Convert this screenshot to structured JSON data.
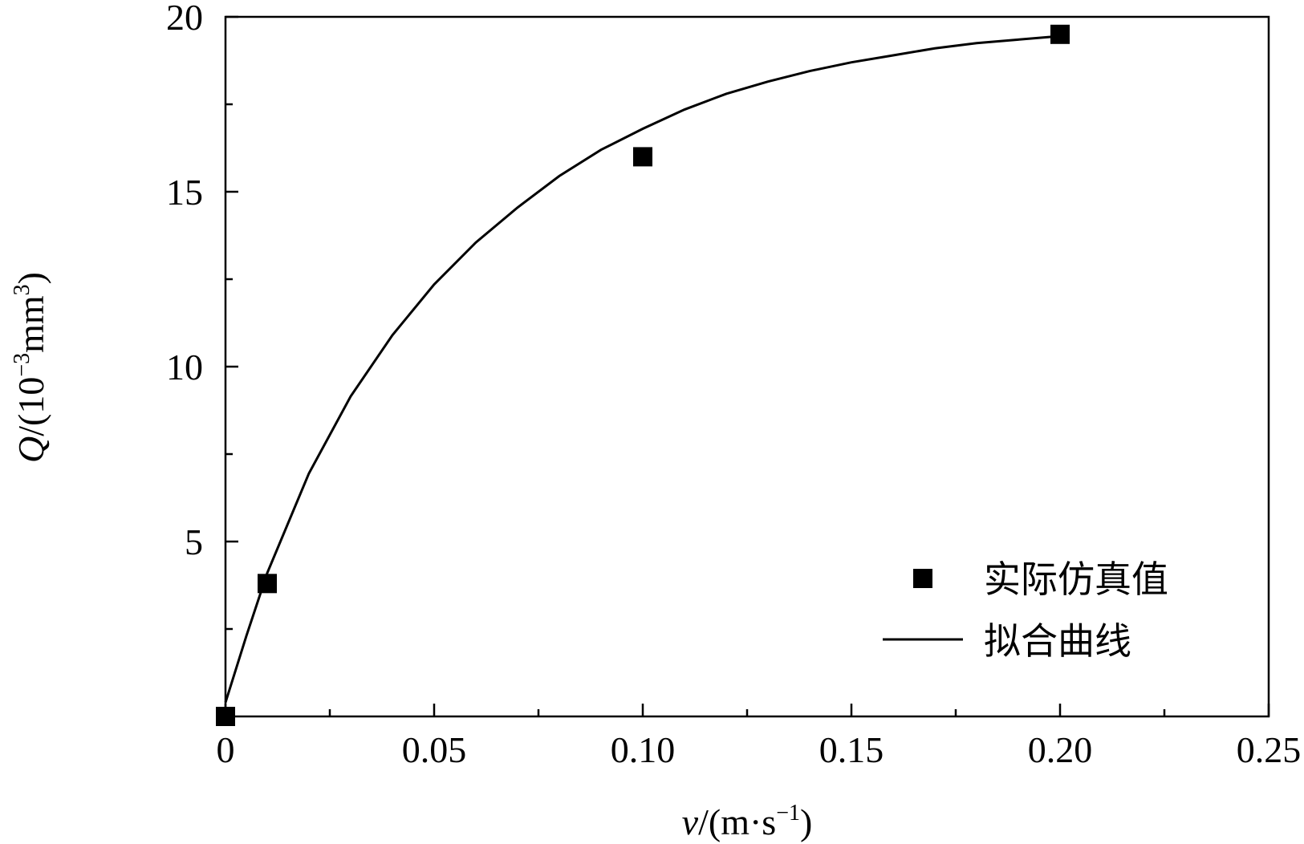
{
  "chart_data": {
    "type": "scatter",
    "xlabel_parts": {
      "var": "v",
      "rest": "/(m·s",
      "sup": "−1",
      "close": ")"
    },
    "ylabel_parts": {
      "var": "Q",
      "rest": "/(10",
      "sup1": "−3",
      "mid": "mm",
      "sup2": "3",
      "close": ")"
    },
    "xlim": [
      0,
      0.25
    ],
    "ylim": [
      0,
      20
    ],
    "x_ticks": [
      {
        "value": 0,
        "label": "0"
      },
      {
        "value": 0.05,
        "label": "0.05"
      },
      {
        "value": 0.1,
        "label": "0.10"
      },
      {
        "value": 0.15,
        "label": "0.15"
      },
      {
        "value": 0.2,
        "label": "0.20"
      },
      {
        "value": 0.25,
        "label": "0.25"
      }
    ],
    "y_ticks": [
      {
        "value": 5,
        "label": "5"
      },
      {
        "value": 10,
        "label": "10"
      },
      {
        "value": 15,
        "label": "15"
      },
      {
        "value": 20,
        "label": "20"
      }
    ],
    "x_minor_ticks": [
      0.025,
      0.075,
      0.125,
      0.175,
      0.225
    ],
    "y_minor_ticks": [
      2.5,
      7.5,
      12.5,
      17.5
    ],
    "grid": false,
    "legend_position": "bottom-right",
    "series": [
      {
        "name": "实际仿真值",
        "kind": "points",
        "marker": "square",
        "color": "#000000",
        "x": [
          0,
          0.01,
          0.1,
          0.2
        ],
        "y": [
          0,
          3.8,
          16.0,
          19.5
        ]
      },
      {
        "name": "拟合曲线",
        "kind": "line",
        "color": "#000000",
        "x": [
          0,
          0.005,
          0.01,
          0.02,
          0.03,
          0.04,
          0.05,
          0.06,
          0.07,
          0.08,
          0.09,
          0.1,
          0.11,
          0.12,
          0.13,
          0.14,
          0.15,
          0.16,
          0.17,
          0.18,
          0.19,
          0.2
        ],
        "y": [
          0.4,
          2.3,
          4.1,
          6.95,
          9.15,
          10.9,
          12.35,
          13.55,
          14.55,
          15.45,
          16.2,
          16.8,
          17.35,
          17.8,
          18.15,
          18.45,
          18.7,
          18.9,
          19.1,
          19.25,
          19.35,
          19.45
        ]
      }
    ]
  }
}
